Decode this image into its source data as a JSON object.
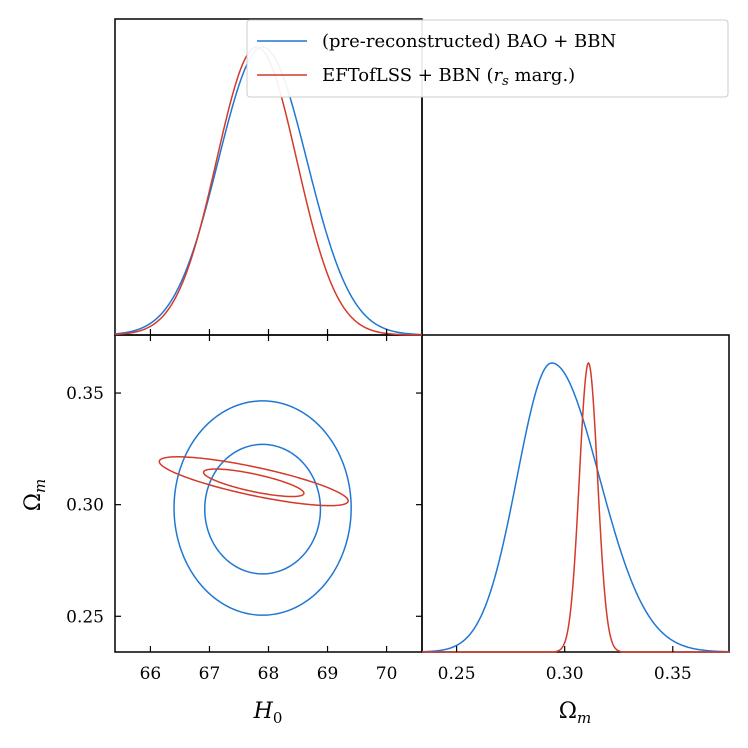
{
  "colors": {
    "blue": "#1f77d4",
    "red": "#d43a2a"
  },
  "legend": {
    "placement": "top-right",
    "entries": [
      {
        "label": "(pre-reconstructed) BAO + BBN",
        "color": "#1f77d4"
      },
      {
        "label_main": "EFTofLSS + BBN (",
        "label_sym": "r",
        "label_sub": "s",
        "label_tail": " marg.)",
        "color": "#d43a2a"
      }
    ]
  },
  "axes": {
    "h0": {
      "symbol": "H",
      "sub": "0",
      "range": [
        65.4,
        70.6
      ],
      "ticks": [
        66,
        67,
        68,
        69,
        70
      ]
    },
    "om": {
      "symbol": "Ω",
      "sub": "m",
      "range": [
        0.234,
        0.376
      ],
      "ticks": [
        0.25,
        0.3,
        0.35
      ],
      "tick_labels": [
        "0.25",
        "0.30",
        "0.35"
      ]
    }
  },
  "chart_data": [
    {
      "type": "line",
      "panel": "H0 marginal",
      "series": [
        {
          "name": "(pre-reconstructed) BAO + BBN",
          "color": "#1f77d4",
          "mean": 67.9,
          "sigma": 0.75,
          "peak": 1.0
        },
        {
          "name": "EFTofLSS + BBN (rs marg.)",
          "color": "#d43a2a",
          "mean": 67.8,
          "sigma": 0.68,
          "peak": 1.0
        }
      ]
    },
    {
      "type": "line",
      "panel": "H0-Om 2D contours",
      "series": [
        {
          "name": "(pre-reconstructed) BAO + BBN",
          "color": "#1f77d4",
          "levels": [
            {
              "cx": 67.9,
              "cy": 0.2985,
              "rx": 1.5,
              "ry": 0.048,
              "angle": 0
            },
            {
              "cx": 67.9,
              "cy": 0.298,
              "rx": 0.98,
              "ry": 0.029,
              "angle": 0
            }
          ]
        },
        {
          "name": "EFTofLSS + BBN (rs marg.)",
          "color": "#d43a2a",
          "levels": [
            {
              "cx": 67.75,
              "cy": 0.3105,
              "rx": 1.6,
              "ry": 0.0065,
              "angle": -0.055
            },
            {
              "cx": 67.75,
              "cy": 0.3098,
              "rx": 0.85,
              "ry": 0.004,
              "angle": -0.055
            }
          ]
        }
      ]
    },
    {
      "type": "line",
      "panel": "Om marginal",
      "series": [
        {
          "name": "(pre-reconstructed) BAO + BBN",
          "color": "#1f77d4",
          "mean": 0.294,
          "sigma_left": 0.016,
          "sigma_right": 0.022,
          "peak": 1.0
        },
        {
          "name": "EFTofLSS + BBN (rs marg.)",
          "color": "#d43a2a",
          "mean": 0.311,
          "sigma": 0.0042,
          "peak": 1.0
        }
      ]
    }
  ]
}
